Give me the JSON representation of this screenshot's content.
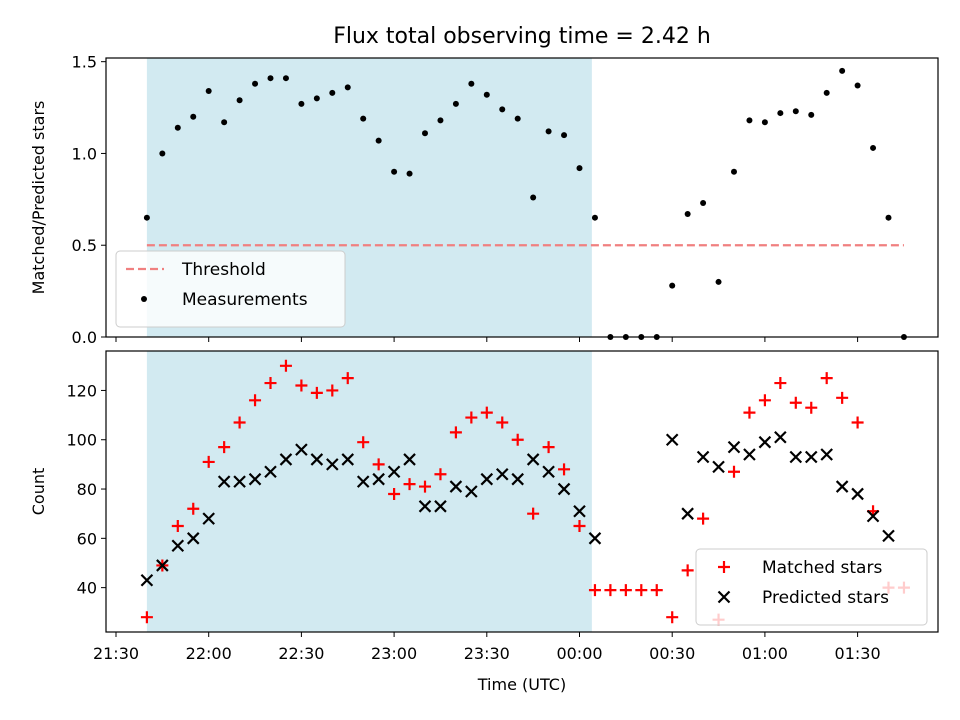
{
  "title": "Flux total observing time = 2.42 h",
  "colors": {
    "threshold": "#f08080",
    "measurements": "#000000",
    "matched": "#ff0000",
    "predicted": "#000000",
    "shade": "#add8e6"
  },
  "chart_data": [
    {
      "type": "scatter",
      "panel": "top",
      "ylabel": "Matched/Predicted stars",
      "ylim": [
        0,
        1.52
      ],
      "yticks": [
        "0.0",
        "0.5",
        "1.0",
        "1.5"
      ],
      "ytick_values": [
        0,
        0.5,
        1.0,
        1.5
      ],
      "legend_position": "lower-left",
      "threshold": {
        "name": "Threshold",
        "y": 0.5,
        "x_start": "21:40",
        "x_end": "01:45",
        "style": "dashed"
      },
      "shaded_region": {
        "x_start": "21:40",
        "x_end": "00:04"
      },
      "series": [
        {
          "name": "Measurements",
          "x": [
            "21:40",
            "21:45",
            "21:50",
            "21:55",
            "22:00",
            "22:05",
            "22:10",
            "22:15",
            "22:20",
            "22:25",
            "22:30",
            "22:35",
            "22:40",
            "22:45",
            "22:50",
            "22:55",
            "23:00",
            "23:05",
            "23:10",
            "23:15",
            "23:20",
            "23:25",
            "23:30",
            "23:35",
            "23:40",
            "23:45",
            "23:50",
            "23:55",
            "00:00",
            "00:05",
            "00:10",
            "00:15",
            "00:20",
            "00:25",
            "00:30",
            "00:35",
            "00:40",
            "00:45",
            "00:50",
            "00:55",
            "01:00",
            "01:05",
            "01:10",
            "01:15",
            "01:20",
            "01:25",
            "01:30",
            "01:35",
            "01:40",
            "01:45"
          ],
          "y": [
            0.65,
            1.0,
            1.14,
            1.2,
            1.34,
            1.17,
            1.29,
            1.38,
            1.41,
            1.41,
            1.27,
            1.3,
            1.33,
            1.36,
            1.19,
            1.07,
            0.9,
            0.89,
            1.11,
            1.18,
            1.27,
            1.38,
            1.32,
            1.24,
            1.19,
            0.76,
            1.12,
            1.1,
            0.92,
            0.65,
            0.0,
            0.0,
            0.0,
            0.0,
            0.28,
            0.67,
            0.73,
            0.3,
            0.9,
            1.18,
            1.17,
            1.22,
            1.23,
            1.21,
            1.33,
            1.45,
            1.37,
            1.03,
            0.65,
            0.0
          ]
        }
      ]
    },
    {
      "type": "scatter",
      "panel": "bottom",
      "xlabel": "Time (UTC)",
      "ylabel": "Count",
      "ylim": [
        22,
        136
      ],
      "yticks": [
        "40",
        "60",
        "80",
        "100",
        "120"
      ],
      "ytick_values": [
        40,
        60,
        80,
        100,
        120
      ],
      "legend_position": "lower-right",
      "xticks": [
        "21:30",
        "22:00",
        "22:30",
        "23:00",
        "23:30",
        "00:00",
        "00:30",
        "01:00",
        "01:30"
      ],
      "shaded_region": {
        "x_start": "21:40",
        "x_end": "00:04"
      },
      "series": [
        {
          "name": "Matched stars",
          "marker": "plus",
          "x": [
            "21:40",
            "21:45",
            "21:50",
            "21:55",
            "22:00",
            "22:05",
            "22:10",
            "22:15",
            "22:20",
            "22:25",
            "22:30",
            "22:35",
            "22:40",
            "22:45",
            "22:50",
            "22:55",
            "23:00",
            "23:05",
            "23:10",
            "23:15",
            "23:20",
            "23:25",
            "23:30",
            "23:35",
            "23:40",
            "23:45",
            "23:50",
            "23:55",
            "00:00",
            "00:05",
            "00:10",
            "00:15",
            "00:20",
            "00:25",
            "00:30",
            "00:35",
            "00:40",
            "00:45",
            "00:50",
            "00:55",
            "01:00",
            "01:05",
            "01:10",
            "01:15",
            "01:20",
            "01:25",
            "01:30",
            "01:35",
            "01:40",
            "01:45"
          ],
          "y": [
            28,
            49,
            65,
            72,
            91,
            97,
            107,
            116,
            123,
            130,
            122,
            119,
            120,
            125,
            99,
            90,
            78,
            82,
            81,
            86,
            103,
            109,
            111,
            107,
            100,
            70,
            97,
            88,
            65,
            39,
            39,
            39,
            39,
            39,
            28,
            47,
            68,
            27,
            87,
            111,
            116,
            123,
            115,
            113,
            125,
            117,
            107,
            71,
            40,
            40
          ]
        },
        {
          "name": "Predicted stars",
          "marker": "x",
          "x": [
            "21:40",
            "21:45",
            "21:50",
            "21:55",
            "22:00",
            "22:05",
            "22:10",
            "22:15",
            "22:20",
            "22:25",
            "22:30",
            "22:35",
            "22:40",
            "22:45",
            "22:50",
            "22:55",
            "23:00",
            "23:05",
            "23:10",
            "23:15",
            "23:20",
            "23:25",
            "23:30",
            "23:35",
            "23:40",
            "23:45",
            "23:50",
            "23:55",
            "00:00",
            "00:05",
            "00:30",
            "00:35",
            "00:40",
            "00:45",
            "00:50",
            "00:55",
            "01:00",
            "01:05",
            "01:10",
            "01:15",
            "01:20",
            "01:25",
            "01:30",
            "01:35",
            "01:40"
          ],
          "y": [
            43,
            49,
            57,
            60,
            68,
            83,
            83,
            84,
            87,
            92,
            96,
            92,
            90,
            92,
            83,
            84,
            87,
            92,
            73,
            73,
            81,
            79,
            84,
            86,
            84,
            92,
            87,
            80,
            71,
            60,
            100,
            70,
            93,
            89,
            97,
            94,
            99,
            101,
            93,
            93,
            94,
            81,
            78,
            69,
            61
          ]
        }
      ]
    }
  ]
}
